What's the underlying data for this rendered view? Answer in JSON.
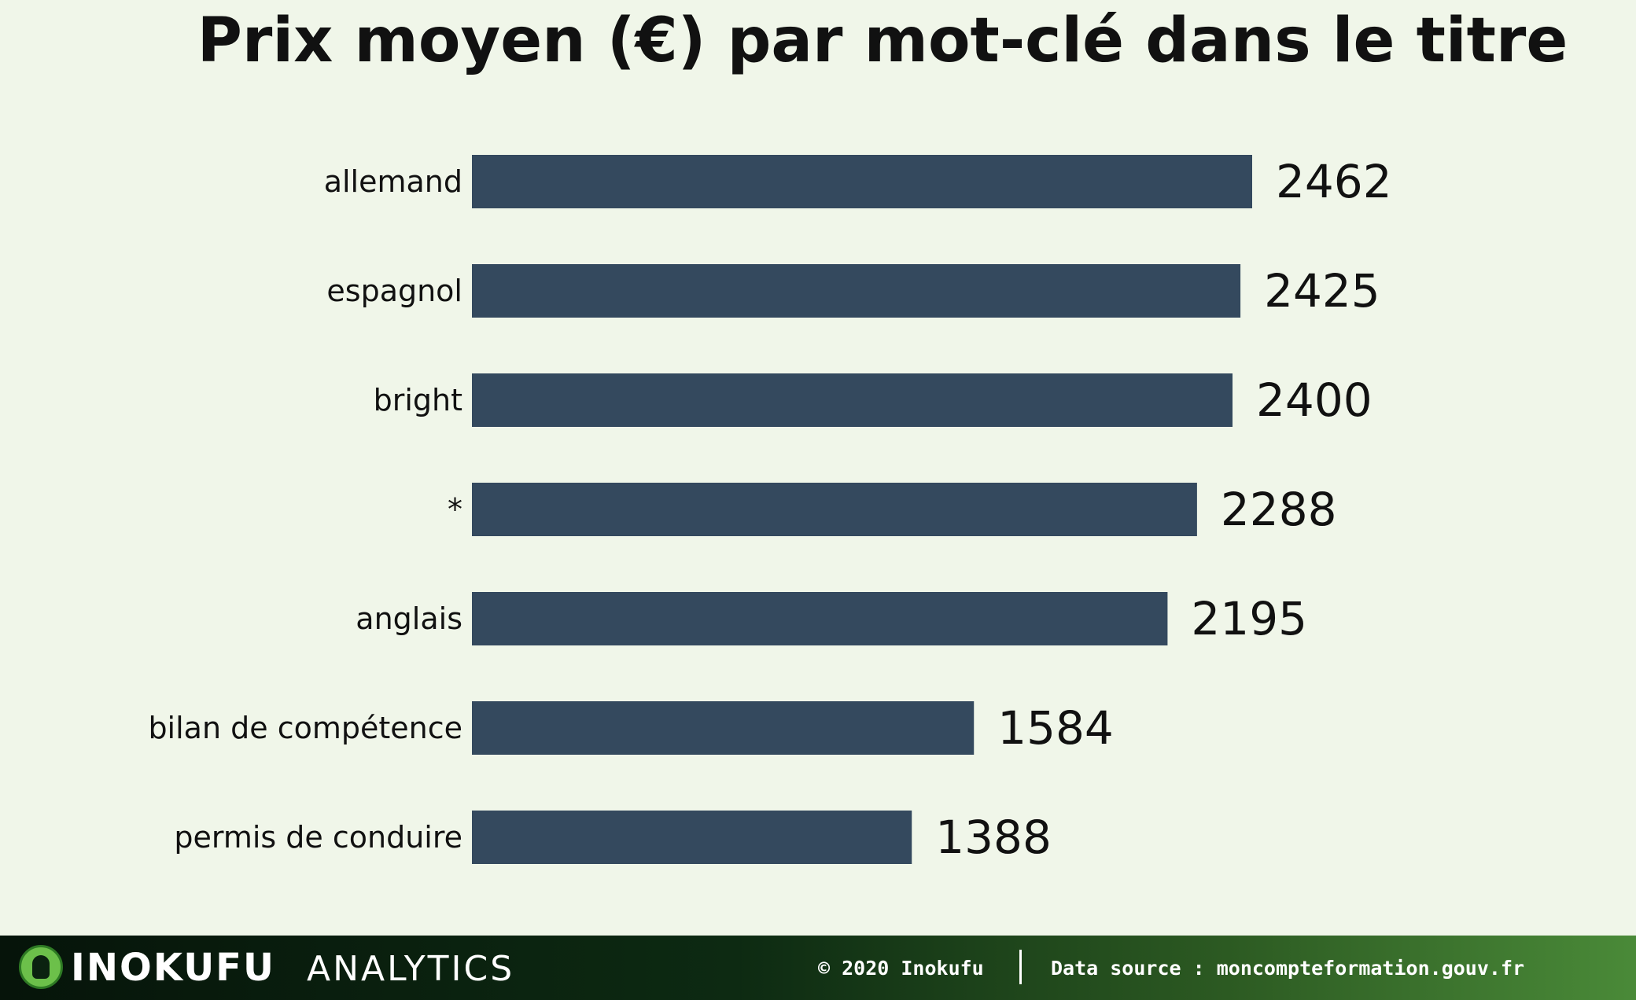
{
  "chart_data": {
    "type": "bar",
    "orientation": "horizontal",
    "title": "Prix moyen (€) par mot-clé dans le titre",
    "categories": [
      "allemand",
      "espagnol",
      "bright",
      "*",
      "anglais",
      "bilan de compétence",
      "permis de conduire"
    ],
    "values": [
      2462,
      2425,
      2400,
      2288,
      2195,
      1584,
      1388
    ],
    "xlabel": "",
    "ylabel": "",
    "xlim": [
      0,
      2462
    ],
    "grid": false,
    "legend": "none",
    "data_labels": true,
    "bar_color": "#34495e"
  },
  "footer": {
    "brand": "INOKUFU",
    "brand_sub": "ANALYTICS",
    "copyright": "© 2020 Inokufu",
    "source": "Data source : moncompteformation.gouv.fr"
  },
  "colors": {
    "background": "#f0f6e9",
    "bar": "#34495e",
    "text": "#111111"
  }
}
